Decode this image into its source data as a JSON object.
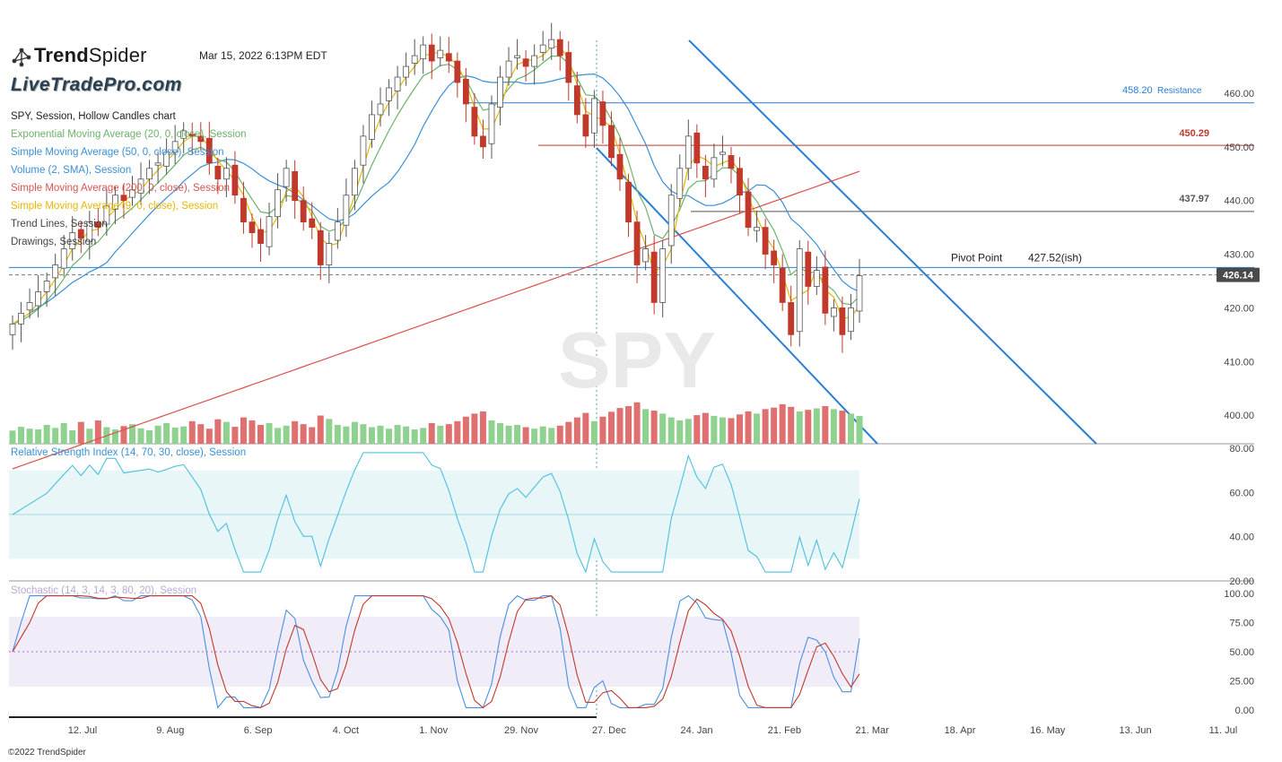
{
  "header": {
    "brand": "TrendSpider",
    "brand_bold": "Trend",
    "brand_regular": "Spider",
    "datetime": "Mar 15, 2022 6:13PM EDT",
    "watermark_logo": "LiveTradePro.com"
  },
  "legend": [
    {
      "text": "SPY, Session, Hollow Candles chart",
      "color": "#222222"
    },
    {
      "text": "Exponential Moving Average (20, 0, close), Session",
      "color": "#6bb26b"
    },
    {
      "text": "Simple Moving Average (50, 0, close), Session",
      "color": "#3a8fd6"
    },
    {
      "text": "Volume (2, SMA), Session",
      "color": "#3a8fd6"
    },
    {
      "text": "Simple Moving Average (200, 0, close), Session",
      "color": "#d9534f"
    },
    {
      "text": "Simple Moving Average (9, 0, close), Session",
      "color": "#e6b800"
    },
    {
      "text": "Trend Lines, Session",
      "color": "#444444"
    },
    {
      "text": "Drawings, Session",
      "color": "#444444"
    }
  ],
  "price_axis": {
    "ticks": [
      "460.00",
      "450.00",
      "440.00",
      "430.00",
      "420.00",
      "410.00",
      "400.00"
    ],
    "current_price": "426.14"
  },
  "levels": [
    {
      "label": "458.20",
      "suffix": "Resistance",
      "price": 458.2,
      "color": "#2a7fd4"
    },
    {
      "label": "450.29",
      "suffix": "",
      "price": 450.29,
      "color": "#c0392b"
    },
    {
      "label": "437.97",
      "suffix": "",
      "price": 437.97,
      "color": "#555555"
    },
    {
      "label": "427.52(ish)",
      "prefix": "Pivot Point",
      "price": 427.52,
      "color": "#2a7fd4"
    }
  ],
  "rsi": {
    "label": "Relative Strength Index (14, 70, 30, close), Session",
    "ticks": [
      "80.00",
      "60.00",
      "40.00",
      "20.00"
    ]
  },
  "stoch": {
    "label": "Stochastic (14, 3, 14, 3, 80, 20), Session",
    "ticks": [
      "100.00",
      "75.00",
      "50.00",
      "25.00",
      "0.00"
    ]
  },
  "x_axis": [
    "12. Jul",
    "9. Aug",
    "6. Sep",
    "4. Oct",
    "1. Nov",
    "29. Nov",
    "27. Dec",
    "24. Jan",
    "21. Feb",
    "21. Mar",
    "18. Apr",
    "16. May",
    "13. Jun",
    "11. Jul"
  ],
  "watermark_symbol": "SPY",
  "copyright": "©2022 TrendSpider",
  "colors": {
    "up": "#8fd18f",
    "down": "#c0392b",
    "ema20": "#6bb26b",
    "sma50": "#3a8fd6",
    "sma200": "#d9534f",
    "sma9": "#e6b800",
    "trend": "#2a7fd4"
  },
  "chart_data": {
    "type": "candlestick",
    "symbol": "SPY",
    "price_range": [
      395,
      468
    ],
    "closes": [
      417,
      419,
      421,
      423,
      425,
      428,
      431,
      434,
      433,
      436,
      435,
      439,
      441,
      440,
      442,
      444,
      446,
      447,
      449,
      451,
      453,
      452,
      451,
      447,
      444,
      446,
      441,
      436,
      434,
      432,
      437,
      442,
      446,
      440,
      436,
      435,
      428,
      432,
      436,
      441,
      446,
      452,
      456,
      458,
      461,
      463,
      465,
      467,
      469,
      466,
      468,
      466,
      462,
      458,
      452,
      450,
      458,
      463,
      466,
      467,
      465,
      467,
      469,
      470,
      467,
      462,
      456,
      452,
      459,
      454,
      448,
      444,
      436,
      428,
      431,
      421,
      431,
      441,
      446,
      452,
      447,
      444,
      448,
      449,
      446,
      441,
      435,
      435,
      430,
      428,
      421,
      415,
      431,
      424,
      427,
      419,
      420,
      415,
      420,
      426
    ],
    "volumes": [
      0.35,
      0.45,
      0.4,
      0.38,
      0.5,
      0.42,
      0.55,
      0.36,
      0.58,
      0.4,
      0.62,
      0.44,
      0.38,
      0.47,
      0.52,
      0.41,
      0.36,
      0.48,
      0.55,
      0.43,
      0.46,
      0.6,
      0.52,
      0.4,
      0.65,
      0.58,
      0.45,
      0.7,
      0.62,
      0.5,
      0.55,
      0.42,
      0.48,
      0.6,
      0.52,
      0.44,
      0.75,
      0.66,
      0.5,
      0.46,
      0.58,
      0.52,
      0.44,
      0.48,
      0.4,
      0.5,
      0.46,
      0.38,
      0.42,
      0.55,
      0.48,
      0.52,
      0.6,
      0.72,
      0.8,
      0.86,
      0.62,
      0.55,
      0.48,
      0.5,
      0.44,
      0.4,
      0.46,
      0.42,
      0.48,
      0.58,
      0.7,
      0.82,
      0.6,
      0.72,
      0.85,
      0.95,
      1.0,
      1.1,
      0.92,
      0.88,
      0.8,
      0.7,
      0.62,
      0.66,
      0.76,
      0.82,
      0.74,
      0.7,
      0.68,
      0.78,
      0.86,
      0.8,
      0.92,
      0.96,
      1.05,
      0.98,
      0.86,
      0.9,
      0.94,
      1.0,
      0.92,
      0.88,
      0.8,
      0.74
    ],
    "rsi_range": [
      20,
      80
    ],
    "rsi_bands": [
      70,
      30
    ],
    "stoch_range": [
      0,
      100
    ],
    "stoch_bands": [
      80,
      20,
      50
    ]
  }
}
